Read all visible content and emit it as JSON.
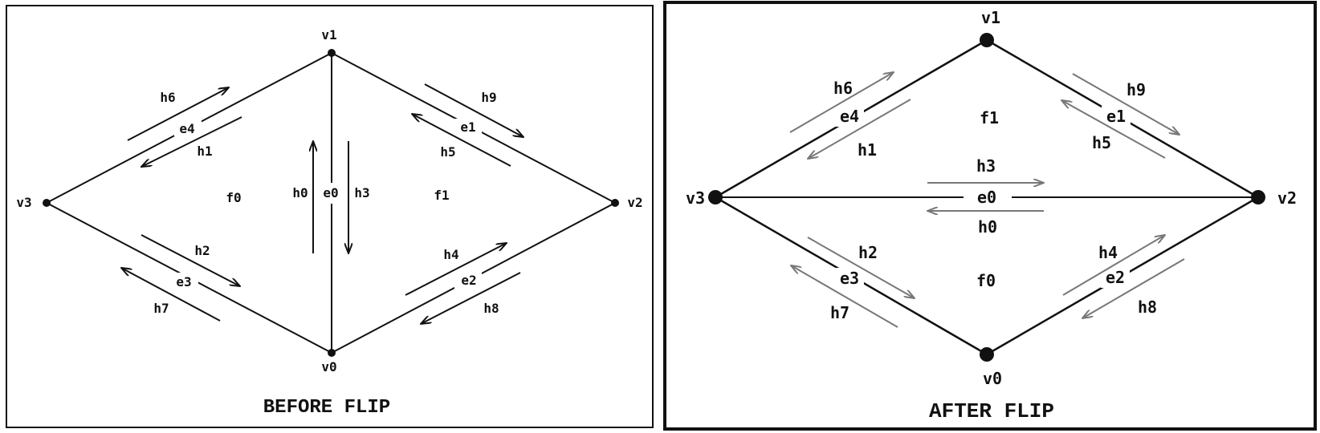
{
  "colors": {
    "ink": "#111111",
    "halfedge_before": "#111111",
    "halfedge_after": "#777777",
    "background": "#ffffff"
  },
  "before": {
    "title": "BEFORE FLIP",
    "vertices": {
      "v0": "v0",
      "v1": "v1",
      "v2": "v2",
      "v3": "v3"
    },
    "edges": {
      "e0": "e0",
      "e1": "e1",
      "e2": "e2",
      "e3": "e3",
      "e4": "e4"
    },
    "faces": {
      "f0": "f0",
      "f1": "f1"
    },
    "halfedges": {
      "h0": "h0",
      "h1": "h1",
      "h2": "h2",
      "h3": "h3",
      "h4": "h4",
      "h5": "h5",
      "h6": "h6",
      "h7": "h7",
      "h8": "h8",
      "h9": "h9"
    }
  },
  "after": {
    "title": "AFTER FLIP",
    "vertices": {
      "v0": "v0",
      "v1": "v1",
      "v2": "v2",
      "v3": "v3"
    },
    "edges": {
      "e0": "e0",
      "e1": "e1",
      "e2": "e2",
      "e3": "e3",
      "e4": "e4"
    },
    "faces": {
      "f0": "f0",
      "f1": "f1"
    },
    "halfedges": {
      "h0": "h0",
      "h1": "h1",
      "h2": "h2",
      "h3": "h3",
      "h4": "h4",
      "h5": "h5",
      "h6": "h6",
      "h7": "h7",
      "h8": "h8",
      "h9": "h9"
    }
  }
}
